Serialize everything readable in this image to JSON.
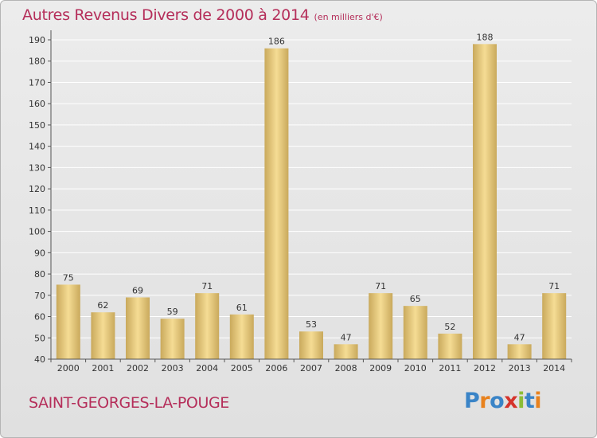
{
  "title": "Autres Revenus Divers de 2000 à 2014",
  "subtitle": "(en milliers d'€)",
  "place": "SAINT-GEORGES-LA-POUGE",
  "logo": {
    "text": "Proxiti",
    "letters": [
      {
        "char": "P",
        "color": "#3a84c7"
      },
      {
        "char": "r",
        "color": "#e8821e"
      },
      {
        "char": "o",
        "color": "#3a84c7"
      },
      {
        "char": "x",
        "color": "#d5342c"
      },
      {
        "char": "i",
        "color": "#8cbd36"
      },
      {
        "char": "t",
        "color": "#3a84c7"
      },
      {
        "char": "i",
        "color": "#e8821e"
      }
    ]
  },
  "colors": {
    "bar_light": "#f5dc94",
    "bar_dark": "#c9a95c",
    "title": "#b52e5a",
    "grid": "#ffffff"
  },
  "chart_data": {
    "type": "bar",
    "title": "Autres Revenus Divers de 2000 à 2014",
    "subtitle": "(en milliers d'€)",
    "categories": [
      "2000",
      "2001",
      "2002",
      "2003",
      "2004",
      "2005",
      "2006",
      "2007",
      "2008",
      "2009",
      "2010",
      "2011",
      "2012",
      "2013",
      "2014"
    ],
    "values": [
      75,
      62,
      69,
      59,
      71,
      61,
      186,
      53,
      47,
      71,
      65,
      52,
      188,
      47,
      71
    ],
    "ylim": [
      40,
      190
    ],
    "yticks": [
      40,
      50,
      60,
      70,
      80,
      90,
      100,
      110,
      120,
      130,
      140,
      150,
      160,
      170,
      180,
      190
    ],
    "grid": true,
    "data_labels": true
  }
}
